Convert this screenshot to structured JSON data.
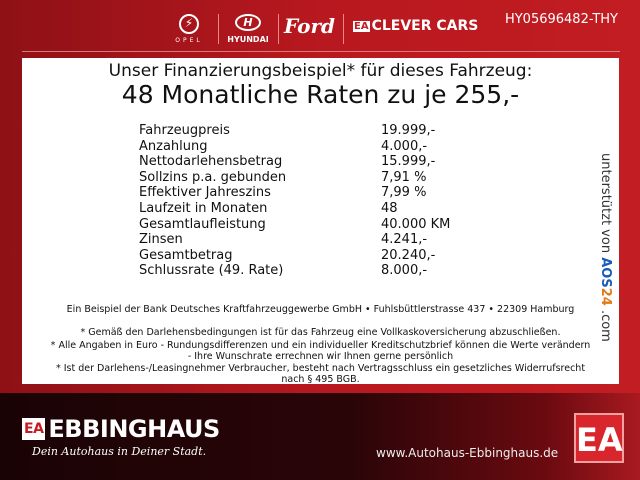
{
  "header": {
    "brands": [
      "OPEL",
      "HYUNDAI",
      "Ford",
      "CLEVER CARS"
    ],
    "reference": "HY05696482-THY"
  },
  "offer": {
    "headline": "Unser Finanzierungsbeispiel* für dieses Fahrzeug:",
    "subheadline": "48 Monatliche Raten zu je 255,-",
    "rows": [
      {
        "label": "Fahrzeugpreis",
        "value": "19.999,-"
      },
      {
        "label": "Anzahlung",
        "value": "4.000,-"
      },
      {
        "label": "Nettodarlehensbetrag",
        "value": "15.999,-"
      },
      {
        "label": "Sollzins p.a. gebunden",
        "value": "7,91 %"
      },
      {
        "label": "Effektiver Jahreszins",
        "value": "7,99 %"
      },
      {
        "label": "Laufzeit in Monaten",
        "value": "48"
      },
      {
        "label": "Gesamtlaufleistung",
        "value": "40.000 KM"
      },
      {
        "label": "Zinsen",
        "value": "4.241,-"
      },
      {
        "label": "Gesamtbetrag",
        "value": "20.240,-"
      },
      {
        "label": "Schlussrate (49. Rate)",
        "value": "8.000,-"
      }
    ],
    "supported_by": "unterstützt von",
    "aos_a": "AOS",
    "aos_b": "24",
    "aos_c": ".com",
    "bank": "Ein Beispiel der Bank Deutsches Kraftfahrzeuggewerbe GmbH • Fuhlsbüttlerstrasse 437 • 22309 Hamburg",
    "notes": [
      "* Gemäß den Darlehensbedingungen ist für das Fahrzeug eine Vollkaskoversicherung abzuschließen.",
      "* Alle Angaben in Euro - Rundungsdifferenzen und ein individueller Kreditschutzbrief können die Werte verändern",
      "- Ihre Wunschrate errechnen wir Ihnen gerne persönlich",
      "* Ist der Darlehens-/Leasingnehmer Verbraucher, besteht nach Vertragsschluss ein gesetzliches Widerrufsrecht",
      "nach § 495 BGB."
    ]
  },
  "footer": {
    "logo_mark": "EA",
    "brand": "EBBINGHAUS",
    "slogan": "Dein Autohaus in Deiner Stadt.",
    "website": "www.Autohaus-Ebbinghaus.de"
  }
}
